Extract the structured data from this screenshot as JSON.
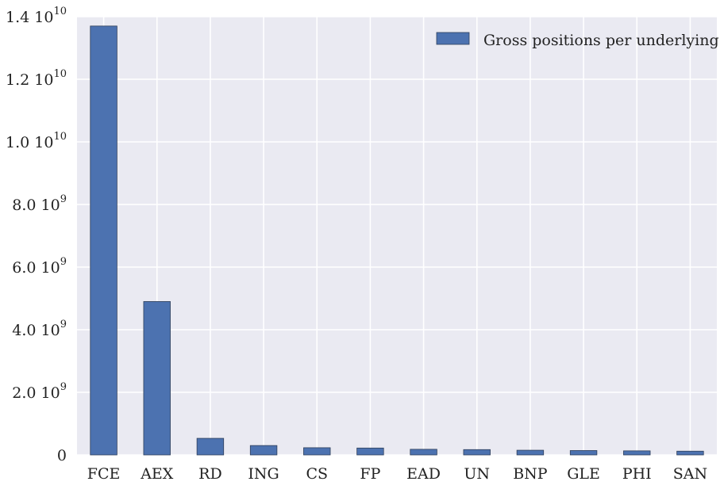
{
  "chart_data": {
    "type": "bar",
    "categories": [
      "FCE",
      "AEX",
      "RD",
      "ING",
      "CS",
      "FP",
      "EAD",
      "UN",
      "BNP",
      "GLE",
      "PHI",
      "SAN"
    ],
    "series": [
      {
        "name": "Gross positions per underlying",
        "values": [
          13700000000,
          4900000000,
          530000000,
          300000000,
          230000000,
          220000000,
          180000000,
          170000000,
          150000000,
          140000000,
          130000000,
          120000000
        ],
        "color": "#4c72b0"
      }
    ],
    "ylim": [
      0,
      14000000000
    ],
    "yticks": [
      {
        "value": 0,
        "mantissa": "0",
        "base": "",
        "exponent": ""
      },
      {
        "value": 2000000000,
        "mantissa": "2.0",
        "base": "10",
        "exponent": "9"
      },
      {
        "value": 4000000000,
        "mantissa": "4.0",
        "base": "10",
        "exponent": "9"
      },
      {
        "value": 6000000000,
        "mantissa": "6.0",
        "base": "10",
        "exponent": "9"
      },
      {
        "value": 8000000000,
        "mantissa": "8.0",
        "base": "10",
        "exponent": "9"
      },
      {
        "value": 10000000000,
        "mantissa": "1.0",
        "base": "10",
        "exponent": "10"
      },
      {
        "value": 12000000000,
        "mantissa": "1.2",
        "base": "10",
        "exponent": "10"
      },
      {
        "value": 14000000000,
        "mantissa": "1.4",
        "base": "10",
        "exponent": "10"
      }
    ],
    "grid": true,
    "legend": "top-right",
    "background": "#eaeaf2",
    "grid_color": "#ffffff"
  }
}
